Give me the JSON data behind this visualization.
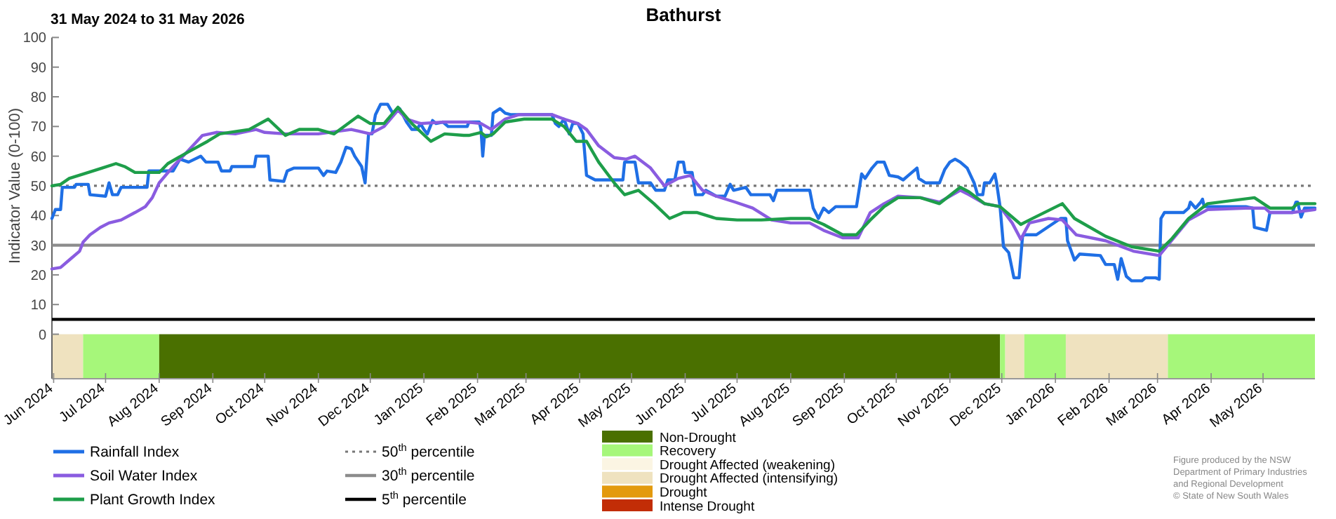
{
  "chart_data": {
    "type": "line",
    "title": "Bathurst",
    "subtitle": "31 May 2024 to 31 May 2026",
    "ylabel": "Indicator Value (0-100)",
    "xlim": [
      "2024-05-31",
      "2026-05-31"
    ],
    "xticks": [
      {
        "value": "2024-06-01",
        "label": "Jun 2024"
      },
      {
        "value": "2024-07-01",
        "label": "Jul 2024"
      },
      {
        "value": "2024-08-01",
        "label": "Aug 2024"
      },
      {
        "value": "2024-09-01",
        "label": "Sep 2024"
      },
      {
        "value": "2024-10-01",
        "label": "Oct 2024"
      },
      {
        "value": "2024-11-01",
        "label": "Nov 2024"
      },
      {
        "value": "2024-12-01",
        "label": "Dec 2024"
      },
      {
        "value": "2025-01-01",
        "label": "Jan 2025"
      },
      {
        "value": "2025-02-01",
        "label": "Feb 2025"
      },
      {
        "value": "2025-03-01",
        "label": "Mar 2025"
      },
      {
        "value": "2025-04-01",
        "label": "Apr 2025"
      },
      {
        "value": "2025-05-01",
        "label": "May 2025"
      },
      {
        "value": "2025-06-01",
        "label": "Jun 2025"
      },
      {
        "value": "2025-07-01",
        "label": "Jul 2025"
      },
      {
        "value": "2025-08-01",
        "label": "Aug 2025"
      },
      {
        "value": "2025-09-01",
        "label": "Sep 2025"
      },
      {
        "value": "2025-10-01",
        "label": "Oct 2025"
      },
      {
        "value": "2025-11-01",
        "label": "Nov 2025"
      },
      {
        "value": "2025-12-01",
        "label": "Dec 2025"
      },
      {
        "value": "2026-01-01",
        "label": "Jan 2026"
      },
      {
        "value": "2026-02-01",
        "label": "Feb 2026"
      },
      {
        "value": "2026-03-01",
        "label": "Mar 2026"
      },
      {
        "value": "2026-04-01",
        "label": "Apr 2026"
      },
      {
        "value": "2026-05-01",
        "label": "May 2026"
      }
    ],
    "ylim": [
      -15,
      100
    ],
    "yticks": [
      0,
      10,
      20,
      30,
      40,
      50,
      60,
      70,
      80,
      90,
      100
    ],
    "grid": false,
    "legend": "bottom",
    "line_style": "solid",
    "marker": "none",
    "series": [
      {
        "name": "Rainfall Index",
        "color": "#1f6fe5",
        "x": [
          "2024-05-31",
          "2024-06-02",
          "2024-06-05",
          "2024-06-06",
          "2024-06-13",
          "2024-06-14",
          "2024-06-21",
          "2024-06-22",
          "2024-07-01",
          "2024-07-03",
          "2024-07-05",
          "2024-07-08",
          "2024-07-10",
          "2024-07-25",
          "2024-07-26",
          "2024-08-09",
          "2024-08-13",
          "2024-08-18",
          "2024-08-25",
          "2024-08-28",
          "2024-09-04",
          "2024-09-06",
          "2024-09-11",
          "2024-09-12",
          "2024-09-25",
          "2024-09-26",
          "2024-10-03",
          "2024-10-04",
          "2024-10-12",
          "2024-10-14",
          "2024-10-18",
          "2024-11-01",
          "2024-11-04",
          "2024-11-06",
          "2024-11-11",
          "2024-11-14",
          "2024-11-17",
          "2024-11-20",
          "2024-11-22",
          "2024-11-26",
          "2024-11-28",
          "2024-11-30",
          "2024-12-02",
          "2024-12-04",
          "2024-12-07",
          "2024-12-11",
          "2024-12-14",
          "2024-12-18",
          "2024-12-22",
          "2024-12-25",
          "2024-12-28",
          "2024-12-30",
          "2025-01-01",
          "2025-01-03",
          "2025-01-06",
          "2025-01-08",
          "2025-01-12",
          "2025-01-15",
          "2025-01-16",
          "2025-01-26",
          "2025-01-27",
          "2025-02-02",
          "2025-02-03",
          "2025-02-04",
          "2025-02-05",
          "2025-02-09",
          "2025-02-10",
          "2025-02-14",
          "2025-02-17",
          "2025-02-20",
          "2025-03-16",
          "2025-03-18",
          "2025-03-20",
          "2025-03-23",
          "2025-03-26",
          "2025-03-28",
          "2025-03-31",
          "2025-04-03",
          "2025-04-05",
          "2025-04-10",
          "2025-04-26",
          "2025-04-27",
          "2025-05-03",
          "2025-05-05",
          "2025-05-12",
          "2025-05-15",
          "2025-05-20",
          "2025-05-22",
          "2025-05-26",
          "2025-05-28",
          "2025-05-31",
          "2025-06-01",
          "2025-06-05",
          "2025-06-07",
          "2025-06-11",
          "2025-06-13",
          "2025-06-19",
          "2025-06-24",
          "2025-06-27",
          "2025-06-29",
          "2025-07-06",
          "2025-07-09",
          "2025-07-20",
          "2025-07-22",
          "2025-07-24",
          "2025-08-12",
          "2025-08-14",
          "2025-08-17",
          "2025-08-20",
          "2025-08-23",
          "2025-08-27",
          "2025-09-08",
          "2025-09-11",
          "2025-09-13",
          "2025-09-17",
          "2025-09-20",
          "2025-09-24",
          "2025-09-27",
          "2025-10-02",
          "2025-10-05",
          "2025-10-08",
          "2025-10-13",
          "2025-10-14",
          "2025-10-18",
          "2025-10-26",
          "2025-10-29",
          "2025-11-01",
          "2025-11-04",
          "2025-11-07",
          "2025-11-11",
          "2025-11-15",
          "2025-11-17",
          "2025-11-20",
          "2025-11-21",
          "2025-11-24",
          "2025-11-27",
          "2025-11-28",
          "2025-11-30",
          "2025-12-02",
          "2025-12-05",
          "2025-12-08",
          "2025-12-11",
          "2025-12-13",
          "2025-12-14",
          "2025-12-21",
          "2026-01-04",
          "2026-01-07",
          "2026-01-08",
          "2026-01-12",
          "2026-01-15",
          "2026-01-27",
          "2026-01-30",
          "2026-02-04",
          "2026-02-06",
          "2026-02-08",
          "2026-02-11",
          "2026-02-14",
          "2026-02-20",
          "2026-02-22",
          "2026-02-28",
          "2026-03-02",
          "2026-03-03",
          "2026-03-05",
          "2026-03-16",
          "2026-03-19",
          "2026-03-20",
          "2026-03-23",
          "2026-03-26",
          "2026-03-27",
          "2026-03-28",
          "2026-04-21",
          "2026-04-25",
          "2026-04-26",
          "2026-05-03",
          "2026-05-05",
          "2026-05-18",
          "2026-05-20",
          "2026-05-21",
          "2026-05-23",
          "2026-05-25",
          "2026-05-28",
          "2026-05-31"
        ],
        "values": [
          39,
          42,
          42,
          49.5,
          49.5,
          50.5,
          50.5,
          47,
          46.5,
          51,
          47,
          47,
          49.5,
          49.5,
          55,
          55,
          59,
          58,
          60,
          58,
          58,
          55,
          55,
          56.5,
          56.5,
          60,
          60,
          52,
          51.5,
          55,
          56,
          56,
          53.5,
          55,
          54.5,
          58,
          63,
          62.5,
          60,
          56.5,
          51,
          67.5,
          67.5,
          74,
          77.5,
          77.5,
          74.5,
          76,
          71.5,
          69,
          69,
          71,
          69,
          67.5,
          72,
          71,
          71.5,
          70,
          70,
          70,
          71.5,
          71.5,
          69,
          60,
          67,
          67,
          74.5,
          76,
          74.5,
          74,
          74,
          71,
          70,
          72.5,
          67.5,
          71,
          71,
          67.5,
          53.5,
          52,
          52,
          58,
          58,
          51,
          51,
          48.5,
          48.5,
          52,
          52,
          58,
          58,
          54.5,
          54.5,
          47,
          47,
          48.5,
          46.5,
          46.5,
          50.5,
          48.5,
          49.5,
          47,
          47,
          45,
          48.5,
          48.5,
          42.5,
          39,
          42.5,
          41,
          43,
          43,
          54,
          52.5,
          56,
          58,
          58,
          53.5,
          53,
          52,
          53.5,
          56,
          52.5,
          51,
          51,
          55.5,
          58,
          59,
          58,
          56,
          51,
          47,
          47,
          51,
          51,
          54,
          51,
          43,
          29.5,
          27.5,
          19,
          19,
          33,
          33.5,
          33.5,
          39,
          39,
          31.5,
          25,
          27,
          26.5,
          23.5,
          23.5,
          18.5,
          25.5,
          19.5,
          18,
          18,
          19,
          19,
          18.5,
          39,
          41,
          41,
          42.5,
          44.5,
          42.5,
          44.5,
          45.5,
          43,
          43,
          42.5,
          36,
          35,
          41,
          41,
          44.5,
          44.5,
          39.5,
          42.5,
          42.5,
          42.5
        ]
      },
      {
        "name": "Soil Water Index",
        "color": "#8a5ce0",
        "x": [
          "2024-05-31",
          "2024-06-05",
          "2024-06-10",
          "2024-06-16",
          "2024-06-18",
          "2024-06-22",
          "2024-06-28",
          "2024-07-03",
          "2024-07-10",
          "2024-07-18",
          "2024-07-24",
          "2024-07-28",
          "2024-08-01",
          "2024-08-09",
          "2024-08-18",
          "2024-08-26",
          "2024-09-03",
          "2024-09-14",
          "2024-09-26",
          "2024-10-01",
          "2024-10-13",
          "2024-11-01",
          "2024-11-20",
          "2024-12-01",
          "2024-12-09",
          "2024-12-17",
          "2024-12-22",
          "2024-12-30",
          "2025-01-13",
          "2025-01-26",
          "2025-02-03",
          "2025-02-09",
          "2025-02-17",
          "2025-02-25",
          "2025-03-16",
          "2025-03-23",
          "2025-03-31",
          "2025-04-05",
          "2025-04-12",
          "2025-04-21",
          "2025-04-28",
          "2025-05-03",
          "2025-05-12",
          "2025-05-20",
          "2025-05-28",
          "2025-06-04",
          "2025-06-11",
          "2025-06-19",
          "2025-06-30",
          "2025-07-10",
          "2025-07-21",
          "2025-08-01",
          "2025-08-12",
          "2025-08-20",
          "2025-08-31",
          "2025-09-09",
          "2025-09-16",
          "2025-09-24",
          "2025-10-02",
          "2025-10-15",
          "2025-10-26",
          "2025-11-07",
          "2025-11-12",
          "2025-11-21",
          "2025-11-30",
          "2025-12-07",
          "2025-12-12",
          "2025-12-17",
          "2025-12-28",
          "2026-01-05",
          "2026-01-13",
          "2026-01-30",
          "2026-02-15",
          "2026-03-02",
          "2026-03-09",
          "2026-03-19",
          "2026-03-30",
          "2026-04-21",
          "2026-05-02",
          "2026-05-05",
          "2026-05-18",
          "2026-05-31"
        ],
        "values": [
          22,
          22.5,
          25,
          28,
          31,
          33.5,
          36,
          37.5,
          38.5,
          41,
          43,
          46,
          51,
          56.5,
          62,
          67,
          68,
          67.5,
          69,
          68,
          67.5,
          67.5,
          69,
          67.5,
          70,
          75.5,
          72.5,
          71,
          71.5,
          71.5,
          71,
          69,
          72.5,
          74,
          74,
          72.5,
          71,
          69,
          63.5,
          59.5,
          59,
          60,
          56,
          50,
          52.5,
          53.5,
          48.5,
          46.5,
          44.5,
          42.5,
          38.5,
          37.5,
          37.5,
          35,
          32.5,
          32.5,
          41,
          44,
          46.5,
          46,
          44.5,
          48.5,
          47,
          44,
          43,
          37.5,
          32,
          37.5,
          39,
          38.5,
          33.5,
          31.5,
          28,
          26.5,
          31.5,
          38.5,
          42,
          42.5,
          42.5,
          41,
          41,
          42
        ]
      },
      {
        "name": "Plant Growth Index",
        "color": "#1e9e4a",
        "x": [
          "2024-05-31",
          "2024-06-05",
          "2024-06-10",
          "2024-06-21",
          "2024-06-29",
          "2024-07-07",
          "2024-07-12",
          "2024-07-18",
          "2024-08-01",
          "2024-08-06",
          "2024-08-18",
          "2024-08-29",
          "2024-09-05",
          "2024-09-22",
          "2024-10-03",
          "2024-10-13",
          "2024-10-21",
          "2024-11-01",
          "2024-11-10",
          "2024-11-24",
          "2024-12-01",
          "2024-12-09",
          "2024-12-17",
          "2024-12-25",
          "2025-01-05",
          "2025-01-13",
          "2025-01-24",
          "2025-01-27",
          "2025-02-03",
          "2025-02-06",
          "2025-02-10",
          "2025-02-17",
          "2025-02-28",
          "2025-03-16",
          "2025-03-23",
          "2025-03-30",
          "2025-04-05",
          "2025-04-12",
          "2025-04-21",
          "2025-04-27",
          "2025-05-05",
          "2025-05-14",
          "2025-05-23",
          "2025-05-31",
          "2025-06-08",
          "2025-06-19",
          "2025-07-01",
          "2025-07-15",
          "2025-08-01",
          "2025-08-12",
          "2025-08-20",
          "2025-08-31",
          "2025-09-08",
          "2025-09-16",
          "2025-09-24",
          "2025-10-02",
          "2025-10-15",
          "2025-10-26",
          "2025-11-07",
          "2025-11-12",
          "2025-11-21",
          "2025-11-30",
          "2025-12-12",
          "2025-12-17",
          "2026-01-05",
          "2026-01-12",
          "2026-01-30",
          "2026-02-14",
          "2026-03-02",
          "2026-03-09",
          "2026-03-19",
          "2026-03-30",
          "2026-04-26",
          "2026-05-05",
          "2026-05-18",
          "2026-05-21",
          "2026-05-31"
        ],
        "values": [
          50,
          50.5,
          52.5,
          54.5,
          56,
          57.5,
          56.5,
          54.5,
          54.5,
          57.5,
          61.5,
          65,
          67.5,
          69,
          72.5,
          67,
          69,
          69,
          67.5,
          73.5,
          71,
          71,
          76.5,
          71,
          65,
          67.5,
          67,
          67,
          68,
          66.5,
          67.5,
          71.5,
          72.5,
          72.5,
          70,
          65,
          65,
          58,
          51,
          47,
          48.5,
          44,
          39,
          41,
          41,
          39,
          38.5,
          38.5,
          39,
          39,
          37,
          33.5,
          33.5,
          38.5,
          43,
          46,
          46,
          44,
          49.5,
          48,
          44,
          43,
          37,
          38.5,
          44,
          39,
          33,
          29.5,
          28,
          32,
          39,
          44,
          46,
          42.5,
          42.5,
          44,
          44
        ]
      }
    ],
    "ref_lines": [
      {
        "axis": "y",
        "value": 50,
        "label": "50$^{th}$ percentile",
        "color": "#777777",
        "line_style": "dotted"
      },
      {
        "axis": "y",
        "value": 30,
        "label": "30$^{th}$ percentile",
        "color": "#8c8c8c",
        "line_style": "solid"
      },
      {
        "axis": "y",
        "value": 5,
        "label": "5$^{th}$ percentile",
        "color": "#000000",
        "line_style": "solid"
      }
    ],
    "bands": [
      {
        "axis": "x",
        "from": "2024-05-31",
        "to": "2024-06-18",
        "color": "#efe2bf"
      },
      {
        "axis": "x",
        "from": "2024-06-18",
        "to": "2024-08-01",
        "color": "#a6f77a"
      },
      {
        "axis": "x",
        "from": "2024-08-01",
        "to": "2025-11-30",
        "label": "Non-Drought",
        "color": "#4a7000"
      },
      {
        "axis": "x",
        "from": "2025-11-30",
        "to": "2025-12-03",
        "label": "Recovery",
        "color": "#a6f77a"
      },
      {
        "axis": "x",
        "from": "2025-12-03",
        "to": "2025-12-14",
        "label": "Drought Affected (intensifying)",
        "color": "#efe2bf"
      },
      {
        "axis": "x",
        "from": "2025-12-14",
        "to": "2026-01-07",
        "color": "#a6f77a"
      },
      {
        "axis": "x",
        "from": "2026-01-07",
        "to": "2026-03-07",
        "color": "#efe2bf"
      },
      {
        "axis": "x",
        "from": "2026-03-07",
        "to": "2026-05-31",
        "color": "#a6f77a"
      }
    ],
    "annotations": [
      "Drought Affected (weakening)",
      "Drought",
      "Intense Drought",
      "Figure produced by the NSW Department of Primary Industries and Regional Development",
      "© State of New South Wales"
    ]
  }
}
